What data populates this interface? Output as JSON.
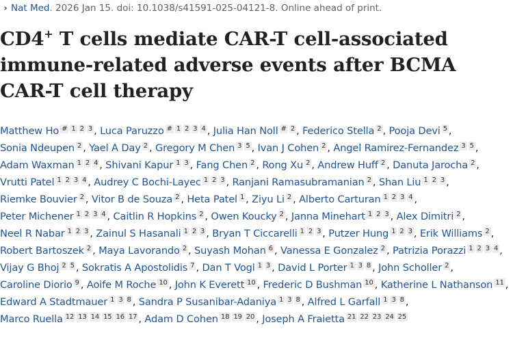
{
  "citation": {
    "journal": "Nat Med",
    "details": ". 2026 Jan 15. doi: 10.1038/s41591-025-04121-8. Online ahead of print."
  },
  "title": {
    "pre": "CD4",
    "sup": "+",
    "rest": " T cells mediate CAR-T cell-associated immune-related adverse events after BCMA CAR-T cell therapy"
  },
  "authors": [
    {
      "name": "Matthew Ho",
      "aff": [
        "#",
        "1",
        "2",
        "3"
      ]
    },
    {
      "name": "Luca Paruzzo",
      "aff": [
        "#",
        "1",
        "2",
        "3",
        "4"
      ]
    },
    {
      "name": "Julia Han Noll",
      "aff": [
        "#",
        "2"
      ]
    },
    {
      "name": "Federico Stella",
      "aff": [
        "2"
      ]
    },
    {
      "name": "Pooja Devi",
      "aff": [
        "5"
      ]
    },
    {
      "name": "Sonia Ndeupen",
      "aff": [
        "2"
      ]
    },
    {
      "name": "Yael A Day",
      "aff": [
        "2"
      ]
    },
    {
      "name": "Gregory M Chen",
      "aff": [
        "3",
        "5"
      ]
    },
    {
      "name": "Ivan J Cohen",
      "aff": [
        "2"
      ]
    },
    {
      "name": "Angel Ramirez-Fernandez",
      "aff": [
        "3",
        "5"
      ]
    },
    {
      "name": "Adam Waxman",
      "aff": [
        "1",
        "2",
        "4"
      ]
    },
    {
      "name": "Shivani Kapur",
      "aff": [
        "1",
        "3"
      ]
    },
    {
      "name": "Fang Chen",
      "aff": [
        "2"
      ]
    },
    {
      "name": "Rong Xu",
      "aff": [
        "2"
      ]
    },
    {
      "name": "Andrew Huff",
      "aff": [
        "2"
      ]
    },
    {
      "name": "Danuta Jarocha",
      "aff": [
        "2"
      ]
    },
    {
      "name": "Vrutti Patel",
      "aff": [
        "1",
        "2",
        "3",
        "4"
      ]
    },
    {
      "name": "Audrey C Bochi-Layec",
      "aff": [
        "1",
        "2",
        "3"
      ]
    },
    {
      "name": "Ranjani Ramasubramanian",
      "aff": [
        "2"
      ]
    },
    {
      "name": "Shan Liu",
      "aff": [
        "1",
        "2",
        "3"
      ]
    },
    {
      "name": "Riemke Bouvier",
      "aff": [
        "2"
      ]
    },
    {
      "name": "Vitor B de Souza",
      "aff": [
        "2"
      ]
    },
    {
      "name": "Heta Patel",
      "aff": [
        "1"
      ]
    },
    {
      "name": "Ziyu Li",
      "aff": [
        "2"
      ]
    },
    {
      "name": "Alberto Carturan",
      "aff": [
        "1",
        "2",
        "3",
        "4"
      ]
    },
    {
      "name": "Peter Michener",
      "aff": [
        "1",
        "2",
        "3",
        "4"
      ]
    },
    {
      "name": "Caitlin R Hopkins",
      "aff": [
        "2"
      ]
    },
    {
      "name": "Owen Koucky",
      "aff": [
        "2"
      ]
    },
    {
      "name": "Janna Minehart",
      "aff": [
        "1",
        "2",
        "3"
      ]
    },
    {
      "name": "Alex Dimitri",
      "aff": [
        "2"
      ]
    },
    {
      "name": "Neel R Nabar",
      "aff": [
        "1",
        "2",
        "3"
      ]
    },
    {
      "name": "Zainul S Hasanali",
      "aff": [
        "1",
        "2",
        "3"
      ]
    },
    {
      "name": "Bryan T Ciccarelli",
      "aff": [
        "1",
        "2",
        "3"
      ]
    },
    {
      "name": "Putzer Hung",
      "aff": [
        "1",
        "2",
        "3"
      ]
    },
    {
      "name": "Erik Williams",
      "aff": [
        "2"
      ]
    },
    {
      "name": "Robert Bartoszek",
      "aff": [
        "2"
      ]
    },
    {
      "name": "Maya Lavorando",
      "aff": [
        "2"
      ]
    },
    {
      "name": "Suyash Mohan",
      "aff": [
        "6"
      ]
    },
    {
      "name": "Vanessa E Gonzalez",
      "aff": [
        "2"
      ]
    },
    {
      "name": "Patrizia Porazzi",
      "aff": [
        "1",
        "2",
        "3",
        "4"
      ]
    },
    {
      "name": "Vijay G Bhoj",
      "aff": [
        "2",
        "5"
      ]
    },
    {
      "name": "Sokratis A Apostolidis",
      "aff": [
        "7"
      ]
    },
    {
      "name": "Dan T Vogl",
      "aff": [
        "1",
        "3"
      ]
    },
    {
      "name": "David L Porter",
      "aff": [
        "1",
        "3",
        "8"
      ]
    },
    {
      "name": "John Scholler",
      "aff": [
        "2"
      ]
    },
    {
      "name": "Caroline Diorio",
      "aff": [
        "9"
      ]
    },
    {
      "name": "Aoife M Roche",
      "aff": [
        "10"
      ]
    },
    {
      "name": "John K Everett",
      "aff": [
        "10"
      ]
    },
    {
      "name": "Frederic D Bushman",
      "aff": [
        "10"
      ]
    },
    {
      "name": "Katherine L Nathanson",
      "aff": [
        "11"
      ]
    },
    {
      "name": "Edward A Stadtmauer",
      "aff": [
        "1",
        "3",
        "8"
      ]
    },
    {
      "name": "Sandra P Susanibar-Adaniya",
      "aff": [
        "1",
        "3",
        "8"
      ]
    },
    {
      "name": "Alfred L Garfall",
      "aff": [
        "1",
        "3",
        "8"
      ]
    },
    {
      "name": "Marco Ruella",
      "aff": [
        "12",
        "13",
        "14",
        "15",
        "16",
        "17"
      ]
    },
    {
      "name": "Adam D Cohen",
      "aff": [
        "18",
        "19",
        "20"
      ]
    },
    {
      "name": "Joseph A Fraietta",
      "aff": [
        "21",
        "22",
        "23",
        "24",
        "25"
      ]
    }
  ]
}
